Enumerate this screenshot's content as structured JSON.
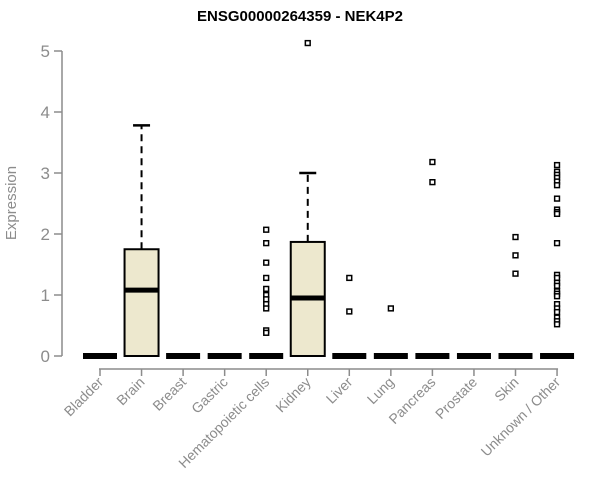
{
  "chart_data": {
    "type": "boxplot",
    "title": "ENSG00000264359 - NEK4P2",
    "ylabel": "Expression",
    "xlabel": "",
    "ylim": [
      0,
      5
    ],
    "yticks": [
      0,
      1,
      2,
      3,
      4,
      5
    ],
    "grid": false,
    "legend": "none",
    "categories": [
      "Bladder",
      "Brain",
      "Breast",
      "Gastric",
      "Hematopoietic cells",
      "Kidney",
      "Liver",
      "Lung",
      "Pancreas",
      "Prostate",
      "Skin",
      "Unknown / Other"
    ],
    "boxes": [
      {
        "category": "Bladder",
        "whisker_low": 0,
        "q1": 0,
        "median": 0,
        "q3": 0,
        "whisker_high": 0,
        "outliers": []
      },
      {
        "category": "Brain",
        "whisker_low": 0,
        "q1": 0,
        "median": 1.08,
        "q3": 1.75,
        "whisker_high": 3.78,
        "outliers": []
      },
      {
        "category": "Breast",
        "whisker_low": 0,
        "q1": 0,
        "median": 0,
        "q3": 0,
        "whisker_high": 0,
        "outliers": []
      },
      {
        "category": "Gastric",
        "whisker_low": 0,
        "q1": 0,
        "median": 0,
        "q3": 0,
        "whisker_high": 0,
        "outliers": []
      },
      {
        "category": "Hematopoietic cells",
        "whisker_low": 0,
        "q1": 0,
        "median": 0,
        "q3": 0,
        "whisker_high": 0,
        "outliers": [
          2.07,
          1.85,
          1.53,
          1.28,
          1.1,
          1.0,
          0.93,
          0.85,
          0.78,
          0.42,
          0.38
        ]
      },
      {
        "category": "Kidney",
        "whisker_low": 0,
        "q1": 0,
        "median": 0.95,
        "q3": 1.87,
        "whisker_high": 3.0,
        "outliers": [
          5.13
        ]
      },
      {
        "category": "Liver",
        "whisker_low": 0,
        "q1": 0,
        "median": 0,
        "q3": 0,
        "whisker_high": 0,
        "outliers": [
          1.28,
          0.73
        ]
      },
      {
        "category": "Lung",
        "whisker_low": 0,
        "q1": 0,
        "median": 0,
        "q3": 0,
        "whisker_high": 0,
        "outliers": [
          0.78
        ]
      },
      {
        "category": "Pancreas",
        "whisker_low": 0,
        "q1": 0,
        "median": 0,
        "q3": 0,
        "whisker_high": 0,
        "outliers": [
          3.18,
          2.85
        ]
      },
      {
        "category": "Prostate",
        "whisker_low": 0,
        "q1": 0,
        "median": 0,
        "q3": 0,
        "whisker_high": 0,
        "outliers": []
      },
      {
        "category": "Skin",
        "whisker_low": 0,
        "q1": 0,
        "median": 0,
        "q3": 0,
        "whisker_high": 0,
        "outliers": [
          1.95,
          1.65,
          1.35
        ]
      },
      {
        "category": "Unknown / Other",
        "whisker_low": 0,
        "q1": 0,
        "median": 0,
        "q3": 0,
        "whisker_high": 0,
        "outliers": [
          3.13,
          3.02,
          2.97,
          2.92,
          2.86,
          2.8,
          2.58,
          2.4,
          2.36,
          2.33,
          1.85,
          1.33,
          1.28,
          1.2,
          1.15,
          1.06,
          1.02,
          0.98,
          0.85,
          0.78,
          0.72,
          0.63,
          0.57,
          0.52
        ]
      }
    ],
    "colors": {
      "box_fill": "#EDE8CE",
      "box_stroke": "#000000",
      "median": "#000000",
      "whisker": "#000000",
      "outlier_stroke": "#000000",
      "outlier_fill": "#FFFFFF",
      "axis": "#8C8C8C",
      "tick_label": "#8C8C8C",
      "title": "#000000",
      "background": "#FFFFFF"
    }
  }
}
